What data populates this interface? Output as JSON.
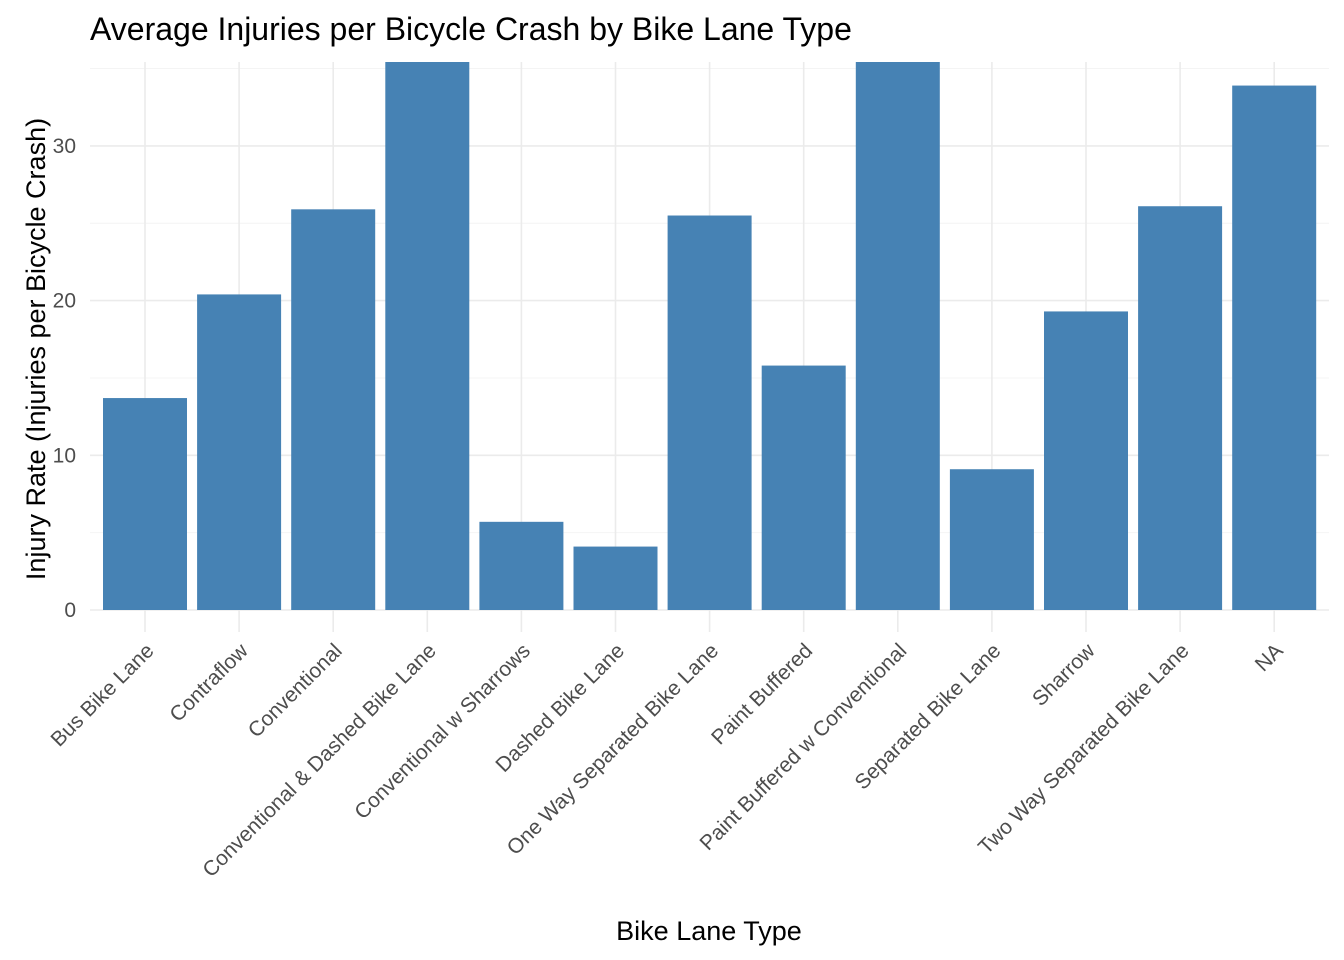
{
  "chart_data": {
    "type": "bar",
    "title": "Average Injuries per Bicycle Crash by Bike Lane Type",
    "xlabel": "Bike Lane Type",
    "ylabel": "Injury Rate (Injuries per Bicycle Crash)",
    "categories": [
      "Bus Bike Lane",
      "Contraflow",
      "Conventional",
      "Conventional & Dashed Bike Lane",
      "Conventional w Sharrows",
      "Dashed Bike Lane",
      "One Way Separated Bike Lane",
      "Paint Buffered",
      "Paint Buffered w Conventional",
      "Separated Bike Lane",
      "Sharrow",
      "Two Way Separated Bike Lane",
      "NA"
    ],
    "values": [
      13.7,
      20.4,
      25.9,
      35.5,
      5.7,
      4.1,
      25.5,
      15.8,
      35.5,
      9.1,
      19.3,
      26.1,
      33.9
    ],
    "yticks": [
      0,
      10,
      20,
      30
    ],
    "ylim": [
      0,
      35.5
    ],
    "grid": true,
    "bar_color": "#4682B4"
  }
}
